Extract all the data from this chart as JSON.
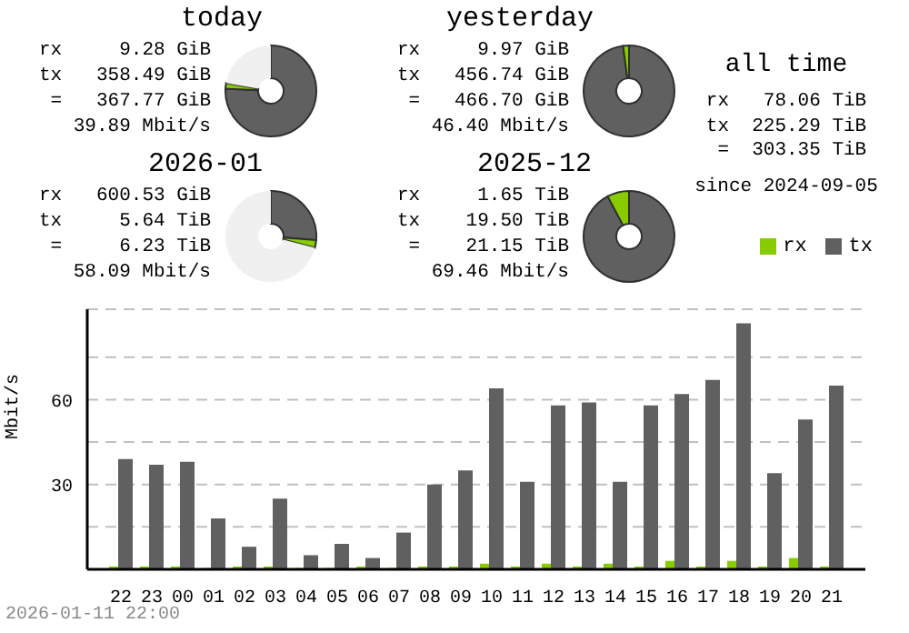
{
  "chart_data": [
    {
      "type": "donut",
      "title": "today",
      "categories": [
        null,
        null,
        null
      ],
      "values": [
        75.8,
        2.0,
        22.2
      ],
      "colors": [
        "#606060",
        "#88cc00",
        "#f0f0f0"
      ],
      "annotations": [
        "rx     9.28 GiB",
        "tx   358.49 GiB",
        " =   367.77 GiB",
        "39.89 Mbit/s"
      ]
    },
    {
      "type": "donut",
      "title": "yesterday",
      "categories": [
        null,
        null
      ],
      "values": [
        97.9,
        2.1
      ],
      "colors": [
        "#606060",
        "#88cc00"
      ],
      "annotations": [
        "rx     9.97 GiB",
        "tx   456.74 GiB",
        " =   466.70 GiB",
        "46.40 Mbit/s"
      ]
    },
    {
      "type": "other",
      "title": "all time",
      "annotations": [
        "rx   78.06 TiB",
        "tx  225.29 TiB",
        " =  303.35 TiB",
        "since 2024-09-05"
      ]
    },
    {
      "type": "donut",
      "title": "2026-01",
      "categories": [
        null,
        null,
        null
      ],
      "values": [
        26.3,
        2.7,
        71.0
      ],
      "colors": [
        "#606060",
        "#88cc00",
        "#f0f0f0"
      ],
      "annotations": [
        "rx   600.53 GiB",
        "tx     5.64 TiB",
        " =     6.23 TiB",
        "58.09 Mbit/s"
      ]
    },
    {
      "type": "donut",
      "title": "2025-12",
      "categories": [
        null,
        null
      ],
      "values": [
        92.2,
        7.8
      ],
      "colors": [
        "#606060",
        "#88cc00"
      ],
      "annotations": [
        "rx     1.65 TiB",
        "tx    19.50 TiB",
        " =    21.15 TiB",
        "69.46 Mbit/s"
      ]
    },
    {
      "type": "bar",
      "ylabel": "Mbit/s",
      "categories": [
        "22",
        "23",
        "00",
        "01",
        "02",
        "03",
        "04",
        "05",
        "06",
        "07",
        "08",
        "09",
        "10",
        "11",
        "12",
        "13",
        "14",
        "15",
        "16",
        "17",
        "18",
        "19",
        "20",
        "21"
      ],
      "series": [
        {
          "name": "rx",
          "color": "#88cc00",
          "values": [
            1,
            1,
            1,
            0.5,
            1,
            1,
            0.5,
            0.5,
            1,
            0.5,
            1,
            1,
            2,
            1,
            2,
            1,
            2,
            1,
            3,
            1,
            3,
            1,
            4,
            1
          ]
        },
        {
          "name": "tx",
          "color": "#606060",
          "values": [
            39,
            37,
            38,
            18,
            8,
            25,
            5,
            9,
            4,
            13,
            30,
            35,
            64,
            31,
            58,
            59,
            31,
            58,
            62,
            67,
            87,
            34,
            53,
            65
          ]
        }
      ],
      "ylim": [
        0,
        92
      ],
      "yticks": [
        {
          "value": 15,
          "label": null
        },
        30,
        {
          "value": 45,
          "label": null
        },
        60,
        {
          "value": 75,
          "label": null
        }
      ],
      "grid": "y",
      "legend": "top right",
      "annotations": [
        "2026-01-11 22:00"
      ]
    }
  ]
}
